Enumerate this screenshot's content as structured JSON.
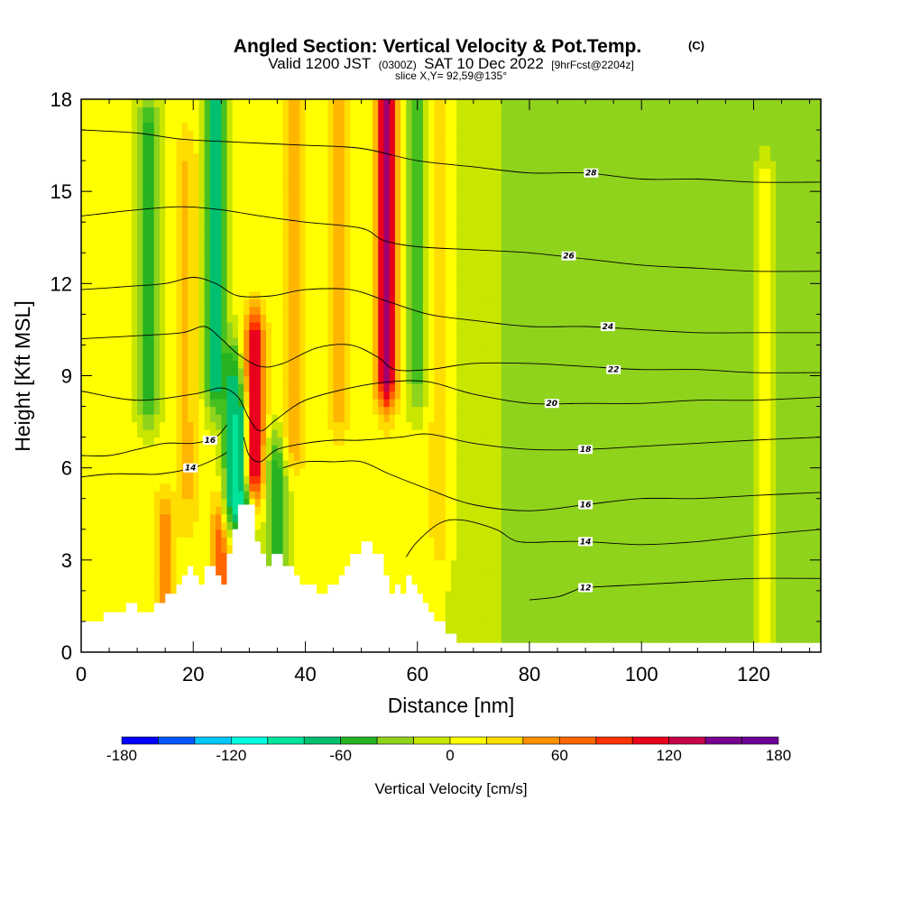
{
  "chart_data": {
    "type": "heatmap",
    "title": "Angled Section: Vertical Velocity & Pot.Temp.",
    "title_unit": "(C)",
    "subtitle": {
      "part1": "Valid 1200 JST",
      "part2": "(0300Z)",
      "part3": "SAT 10 Dec 2022",
      "part4": "[9hrFcst@2204z]"
    },
    "slice_label": "slice X,Y= 92,59@135°",
    "xlabel": "Distance [nm]",
    "ylabel": "Height [Kft MSL]",
    "xlim": [
      0,
      132
    ],
    "ylim": [
      0,
      18
    ],
    "x_ticks": [
      {
        "value": 0,
        "label": "0"
      },
      {
        "value": 20,
        "label": "20"
      },
      {
        "value": 40,
        "label": "40"
      },
      {
        "value": 60,
        "label": "60"
      },
      {
        "value": 80,
        "label": "80"
      },
      {
        "value": 100,
        "label": "100"
      },
      {
        "value": 120,
        "label": "120"
      }
    ],
    "y_ticks": [
      {
        "value": 0,
        "label": "0"
      },
      {
        "value": 3,
        "label": "3"
      },
      {
        "value": 6,
        "label": "6"
      },
      {
        "value": 9,
        "label": "9"
      },
      {
        "value": 12,
        "label": "12"
      },
      {
        "value": 15,
        "label": "15"
      },
      {
        "value": 18,
        "label": "18"
      }
    ],
    "colorbar": {
      "label": "Vertical Velocity [cm/s]",
      "min": -180,
      "max": 180,
      "step": 20,
      "tick_labels": [
        {
          "value": -180,
          "label": "-180"
        },
        {
          "value": -120,
          "label": "-120"
        },
        {
          "value": -60,
          "label": "-60"
        },
        {
          "value": 0,
          "label": "0"
        },
        {
          "value": 60,
          "label": "60"
        },
        {
          "value": 120,
          "label": "120"
        },
        {
          "value": 180,
          "label": "180"
        }
      ],
      "colors": [
        "#0000ff",
        "#0055ff",
        "#0099ff",
        "#00c8ff",
        "#00ffe0",
        "#00e39a",
        "#00c070",
        "#27b321",
        "#46c01e",
        "#8fd31c",
        "#c8e600",
        "#ffff00",
        "#ffdd00",
        "#ffb600",
        "#ff9000",
        "#ff6600",
        "#ff3300",
        "#e8001c",
        "#c8004a",
        "#a00070",
        "#78008f",
        "#6a0096"
      ]
    },
    "velocity_field": {
      "background_value": 5,
      "east_background_value": -25,
      "features": [
        {
          "x": 3,
          "y_top": 18,
          "y_bottom": 0,
          "value": 15
        },
        {
          "x": 12,
          "y_top": 17,
          "y_bottom": 8.5,
          "value": -55
        },
        {
          "x": 15,
          "y_top": 4,
          "y_bottom": 1.5,
          "value": 60
        },
        {
          "x": 19,
          "y_top": 16,
          "y_bottom": 5,
          "value": 35
        },
        {
          "x": 24,
          "y_top": 18,
          "y_bottom": 9,
          "value": -80
        },
        {
          "x": 25,
          "y_top": 4,
          "y_bottom": 2,
          "value": 80
        },
        {
          "x": 27,
          "y_top": 9,
          "y_bottom": 5,
          "value": -70
        },
        {
          "x": 29,
          "y_top": 7.5,
          "y_bottom": 4.7,
          "value": -110
        },
        {
          "x": 31,
          "y_top": 10,
          "y_bottom": 6,
          "value": 120
        },
        {
          "x": 35,
          "y_top": 6,
          "y_bottom": 3,
          "value": -60
        },
        {
          "x": 38,
          "y_top": 18,
          "y_bottom": 7,
          "value": 45
        },
        {
          "x": 46,
          "y_top": 18,
          "y_bottom": 8,
          "value": 40
        },
        {
          "x": 54.5,
          "y_top": 18,
          "y_bottom": 9,
          "value": 140
        },
        {
          "x": 60,
          "y_top": 18,
          "y_bottom": 9,
          "value": -40
        },
        {
          "x": 64,
          "y_top": 18,
          "y_bottom": 4,
          "value": 30
        },
        {
          "x": 78,
          "y_top": 18,
          "y_bottom": 1,
          "value": -30
        },
        {
          "x": 98,
          "y_top": 12,
          "y_bottom": 0.5,
          "value": -30
        },
        {
          "x": 122,
          "y_top": 15,
          "y_bottom": 0.5,
          "value": 15
        }
      ]
    },
    "terrain_profile": {
      "x": [
        0,
        4,
        4,
        8,
        8,
        10,
        10,
        13,
        13,
        15,
        15,
        17,
        17,
        18,
        18,
        19,
        19,
        20,
        20,
        21,
        21,
        22,
        22,
        24,
        24,
        25,
        25,
        26,
        26,
        27,
        27,
        28,
        28,
        31,
        31,
        32,
        32,
        33,
        33,
        34,
        34,
        36,
        36,
        38,
        38,
        39,
        39,
        42,
        42,
        44,
        44,
        46,
        46,
        47,
        47,
        48,
        48,
        50,
        50,
        52,
        52,
        54,
        54,
        55,
        55,
        56,
        56,
        57,
        57,
        58,
        58,
        59,
        59,
        60,
        60,
        61,
        61,
        62,
        62,
        63,
        63,
        65,
        65,
        67,
        67,
        70,
        70,
        132
      ],
      "height": [
        1.0,
        1.0,
        1.3,
        1.3,
        1.6,
        1.6,
        1.3,
        1.3,
        1.6,
        1.6,
        1.9,
        1.9,
        2.2,
        2.2,
        2.5,
        2.5,
        2.8,
        2.8,
        2.5,
        2.5,
        2.2,
        2.2,
        2.8,
        2.8,
        2.5,
        2.5,
        2.2,
        2.2,
        3.2,
        3.2,
        4.0,
        4.0,
        4.8,
        4.8,
        3.6,
        3.6,
        3.2,
        3.2,
        2.8,
        2.8,
        3.2,
        3.2,
        2.8,
        2.8,
        2.5,
        2.5,
        2.2,
        2.2,
        1.9,
        1.9,
        2.2,
        2.2,
        2.5,
        2.5,
        2.8,
        2.8,
        3.2,
        3.2,
        3.6,
        3.6,
        3.2,
        3.2,
        2.5,
        2.5,
        1.9,
        1.9,
        2.2,
        2.2,
        1.9,
        1.9,
        2.5,
        2.5,
        2.2,
        2.2,
        1.9,
        1.9,
        1.6,
        1.6,
        1.3,
        1.3,
        1.0,
        1.0,
        0.6,
        0.6,
        0.3,
        0.3,
        0.3,
        0.3
      ]
    },
    "theta_contours": [
      {
        "value": 12,
        "label": "12",
        "points": [
          [
            80,
            1.7
          ],
          [
            85,
            1.8
          ],
          [
            88,
            2.0
          ],
          [
            90,
            2.1
          ],
          [
            100,
            2.2
          ],
          [
            110,
            2.3
          ],
          [
            120,
            2.4
          ],
          [
            132,
            2.4
          ]
        ],
        "label_at": [
          90,
          2.1
        ]
      },
      {
        "value": 14,
        "label": "14",
        "points": [
          [
            0,
            5.7
          ],
          [
            5,
            5.8
          ],
          [
            10,
            5.8
          ],
          [
            14,
            5.8
          ],
          [
            20,
            6.0
          ],
          [
            24,
            6.3
          ],
          [
            26,
            6.5
          ]
        ],
        "label_at": [
          19.5,
          6.0
        ]
      },
      {
        "value": 14,
        "label": "14",
        "points": [
          [
            58,
            3.1
          ],
          [
            60,
            3.6
          ],
          [
            64,
            4.2
          ],
          [
            68,
            4.3
          ],
          [
            74,
            4.0
          ],
          [
            78,
            3.6
          ],
          [
            85,
            3.6
          ],
          [
            90,
            3.6
          ],
          [
            100,
            3.5
          ],
          [
            110,
            3.6
          ],
          [
            120,
            3.8
          ],
          [
            132,
            4.0
          ]
        ],
        "label_at": [
          90,
          3.6
        ]
      },
      {
        "value": 16,
        "label": "16",
        "points": [
          [
            0,
            6.4
          ],
          [
            5,
            6.4
          ],
          [
            10,
            6.6
          ],
          [
            15,
            6.8
          ],
          [
            20,
            6.8
          ],
          [
            24,
            7.0
          ],
          [
            26,
            7.4
          ]
        ],
        "label_at": [
          23,
          6.9
        ]
      },
      {
        "value": 16,
        "label": "16",
        "points": [
          [
            36,
            6.0
          ],
          [
            40,
            6.2
          ],
          [
            45,
            6.2
          ],
          [
            50,
            6.2
          ],
          [
            55,
            5.8
          ],
          [
            62,
            5.3
          ],
          [
            70,
            4.8
          ],
          [
            80,
            4.6
          ],
          [
            90,
            4.8
          ],
          [
            100,
            5.0
          ],
          [
            110,
            5.0
          ],
          [
            120,
            5.1
          ],
          [
            132,
            5.2
          ]
        ],
        "label_at": [
          90,
          4.8
        ]
      },
      {
        "value": 18,
        "label": "18",
        "points": [
          [
            29,
            7.0
          ],
          [
            30,
            6.4
          ],
          [
            32,
            6.2
          ],
          [
            35,
            6.6
          ],
          [
            40,
            6.8
          ],
          [
            45,
            6.9
          ],
          [
            50,
            6.9
          ],
          [
            57,
            7.0
          ],
          [
            62,
            7.1
          ],
          [
            70,
            6.8
          ],
          [
            80,
            6.6
          ],
          [
            90,
            6.6
          ],
          [
            100,
            6.7
          ],
          [
            110,
            6.8
          ],
          [
            120,
            6.9
          ],
          [
            132,
            7.0
          ]
        ],
        "label_at": [
          90,
          6.6
        ]
      },
      {
        "value": 20,
        "label": "20",
        "points": [
          [
            0,
            8.5
          ],
          [
            10,
            8.2
          ],
          [
            20,
            8.4
          ],
          [
            25,
            8.6
          ],
          [
            28,
            8.3
          ],
          [
            30,
            7.6
          ],
          [
            32,
            7.2
          ],
          [
            35,
            7.6
          ],
          [
            40,
            8.2
          ],
          [
            48,
            8.6
          ],
          [
            55,
            8.8
          ],
          [
            62,
            8.8
          ],
          [
            70,
            8.4
          ],
          [
            80,
            8.1
          ],
          [
            90,
            8.1
          ],
          [
            100,
            8.1
          ],
          [
            110,
            8.2
          ],
          [
            120,
            8.2
          ],
          [
            132,
            8.3
          ]
        ],
        "label_at": [
          84,
          8.1
        ]
      },
      {
        "value": 22,
        "label": "22",
        "points": [
          [
            0,
            10.2
          ],
          [
            10,
            10.3
          ],
          [
            18,
            10.4
          ],
          [
            22,
            10.6
          ],
          [
            25,
            10.2
          ],
          [
            28,
            9.7
          ],
          [
            32,
            9.3
          ],
          [
            36,
            9.4
          ],
          [
            42,
            9.9
          ],
          [
            48,
            10.0
          ],
          [
            53,
            9.6
          ],
          [
            56,
            9.2
          ],
          [
            62,
            9.2
          ],
          [
            70,
            9.4
          ],
          [
            80,
            9.4
          ],
          [
            90,
            9.3
          ],
          [
            100,
            9.2
          ],
          [
            110,
            9.2
          ],
          [
            120,
            9.1
          ],
          [
            132,
            9.1
          ]
        ],
        "label_at": [
          95,
          9.2
        ]
      },
      {
        "value": 24,
        "label": "24",
        "points": [
          [
            0,
            11.8
          ],
          [
            8,
            11.9
          ],
          [
            15,
            12.0
          ],
          [
            20,
            12.2
          ],
          [
            24,
            12.0
          ],
          [
            28,
            11.6
          ],
          [
            34,
            11.6
          ],
          [
            40,
            11.8
          ],
          [
            48,
            11.8
          ],
          [
            55,
            11.4
          ],
          [
            62,
            11.0
          ],
          [
            70,
            10.8
          ],
          [
            80,
            10.6
          ],
          [
            90,
            10.6
          ],
          [
            100,
            10.5
          ],
          [
            110,
            10.4
          ],
          [
            120,
            10.4
          ],
          [
            132,
            10.4
          ]
        ],
        "label_at": [
          94,
          10.6
        ]
      },
      {
        "value": 26,
        "label": "26",
        "points": [
          [
            0,
            14.2
          ],
          [
            10,
            14.4
          ],
          [
            18,
            14.5
          ],
          [
            25,
            14.4
          ],
          [
            32,
            14.2
          ],
          [
            40,
            14.0
          ],
          [
            50,
            13.8
          ],
          [
            54,
            13.4
          ],
          [
            60,
            13.2
          ],
          [
            70,
            13.1
          ],
          [
            80,
            13.0
          ],
          [
            90,
            12.8
          ],
          [
            100,
            12.6
          ],
          [
            110,
            12.5
          ],
          [
            120,
            12.4
          ],
          [
            132,
            12.4
          ]
        ],
        "label_at": [
          87,
          12.9
        ]
      },
      {
        "value": 28,
        "label": "28",
        "points": [
          [
            0,
            17.0
          ],
          [
            10,
            16.9
          ],
          [
            18,
            16.7
          ],
          [
            28,
            16.6
          ],
          [
            40,
            16.5
          ],
          [
            50,
            16.4
          ],
          [
            60,
            16.0
          ],
          [
            70,
            15.8
          ],
          [
            80,
            15.6
          ],
          [
            90,
            15.6
          ],
          [
            100,
            15.4
          ],
          [
            110,
            15.4
          ],
          [
            120,
            15.3
          ],
          [
            132,
            15.3
          ]
        ],
        "label_at": [
          91,
          15.6
        ]
      }
    ]
  }
}
